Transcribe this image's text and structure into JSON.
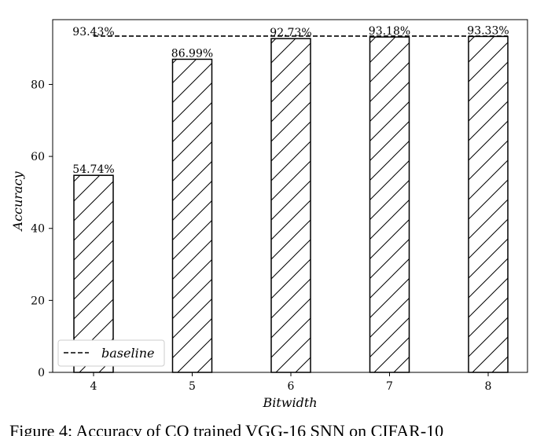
{
  "chart_data": {
    "type": "bar",
    "categories": [
      "4",
      "5",
      "6",
      "7",
      "8"
    ],
    "values": [
      54.74,
      86.99,
      92.73,
      93.18,
      93.33
    ],
    "data_labels": [
      "54.74%",
      "86.99%",
      "92.73%",
      "93.18%",
      "93.33%"
    ],
    "bar_fill": "hatched '/'",
    "baseline": {
      "name": "baseline",
      "value": 93.43,
      "label": "93.43%",
      "style": "dashed"
    },
    "xlabel": "Bitwidth",
    "ylabel": "Accuracy",
    "ylim": [
      0,
      98
    ],
    "yticks": [
      0,
      20,
      40,
      60,
      80
    ],
    "legend": {
      "entries": [
        "baseline"
      ],
      "placement": "lower-left"
    },
    "grid": false
  },
  "caption": "Figure 4: Accuracy of CQ trained VGG-16 SNN on CIFAR-10"
}
